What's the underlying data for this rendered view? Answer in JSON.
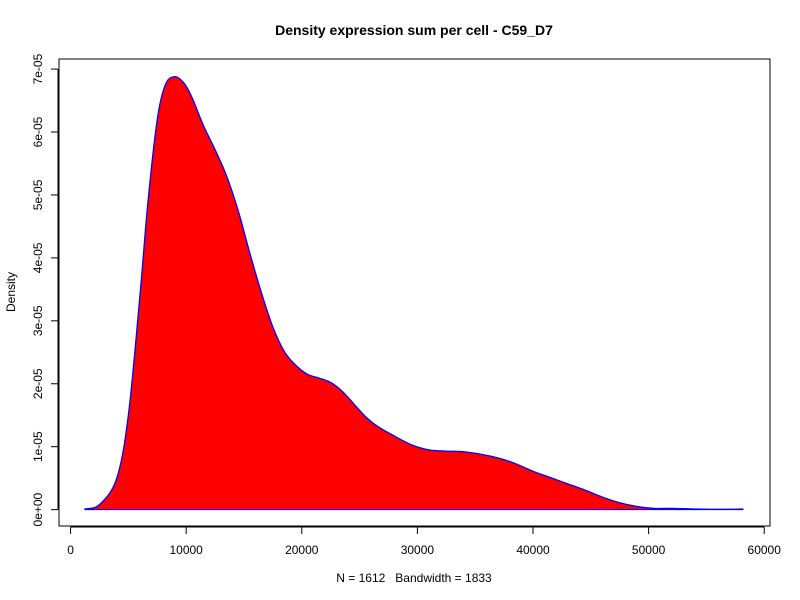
{
  "chart_data": {
    "type": "area",
    "title": "Density expression sum per cell - C59_D7",
    "xlabel": "N = 1612   Bandwidth = 1833",
    "ylabel": "Density",
    "xlim": [
      -1000,
      60500
    ],
    "ylim": [
      -2.6e-06,
      7.16e-05
    ],
    "x_ticks": [
      0,
      10000,
      20000,
      30000,
      40000,
      50000,
      60000
    ],
    "x_tick_labels": [
      "0",
      "10000",
      "20000",
      "30000",
      "40000",
      "50000",
      "60000"
    ],
    "y_ticks": [
      0,
      1e-05,
      2e-05,
      3e-05,
      4e-05,
      5e-05,
      6e-05,
      7e-05
    ],
    "y_tick_labels": [
      "0e+00",
      "1e-05",
      "2e-05",
      "3e-05",
      "4e-05",
      "5e-05",
      "6e-05",
      "7e-05"
    ],
    "fill_color": "#ff0000",
    "line_color": "#0000ff",
    "grid": false,
    "series": [
      {
        "x": [
          1200,
          2500,
          4000,
          5000,
          6000,
          6700,
          7500,
          8200,
          9000,
          9800,
          10500,
          11500,
          12500,
          13500,
          14500,
          15500,
          16500,
          17500,
          18500,
          19500,
          20500,
          21500,
          22500,
          23500,
          24500,
          25500,
          26500,
          28000,
          29500,
          31000,
          32500,
          34000,
          35500,
          37000,
          38500,
          40000,
          41500,
          43000,
          44500,
          46000,
          47500,
          49000,
          50500,
          52000,
          54000,
          56000,
          58200
        ],
        "y": [
          1e-07,
          8e-07,
          5e-06,
          1.5e-05,
          3.4e-05,
          4.9e-05,
          6.2e-05,
          6.75e-05,
          6.88e-05,
          6.78e-05,
          6.55e-05,
          6.1e-05,
          5.72e-05,
          5.3e-05,
          4.75e-05,
          4.08e-05,
          3.45e-05,
          2.9e-05,
          2.51e-05,
          2.29e-05,
          2.15e-05,
          2.09e-05,
          2.02e-05,
          1.88e-05,
          1.68e-05,
          1.48e-05,
          1.33e-05,
          1.17e-05,
          1.03e-05,
          9.5e-06,
          9.3e-06,
          9.2e-06,
          8.8e-06,
          8.2e-06,
          7.3e-06,
          6.1e-06,
          5.1e-06,
          4.1e-06,
          3.1e-06,
          2e-06,
          1.1e-06,
          5e-07,
          2e-07,
          2e-07,
          1e-07,
          5e-08,
          1e-07
        ]
      }
    ]
  }
}
